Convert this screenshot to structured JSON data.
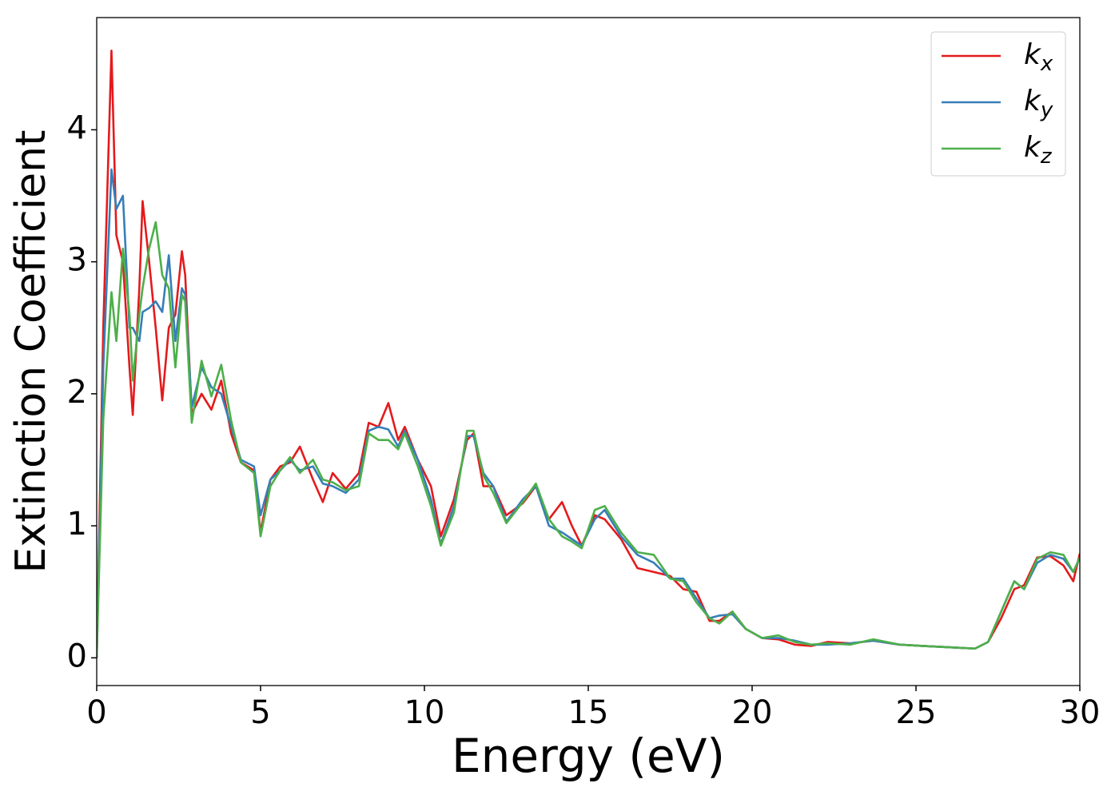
{
  "chart_data": {
    "type": "line",
    "xlabel": "Energy (eV)",
    "ylabel": "Extinction Coefficient",
    "xlim": [
      0,
      30
    ],
    "ylim": [
      -0.21,
      4.85
    ],
    "xticks": [
      0,
      5,
      10,
      15,
      20,
      25,
      30
    ],
    "yticks": [
      0,
      1,
      2,
      3,
      4
    ],
    "grid": false,
    "legend": "upper right",
    "x": [
      0,
      0.2,
      0.45,
      0.6,
      0.8,
      1.0,
      1.1,
      1.3,
      1.4,
      1.6,
      1.8,
      2.0,
      2.2,
      2.4,
      2.6,
      2.7,
      2.9,
      3.2,
      3.5,
      3.8,
      4.1,
      4.4,
      4.8,
      5.0,
      5.3,
      5.6,
      5.9,
      6.2,
      6.6,
      6.9,
      7.2,
      7.6,
      8.0,
      8.3,
      8.6,
      8.9,
      9.2,
      9.4,
      9.8,
      10.2,
      10.5,
      10.9,
      11.3,
      11.5,
      11.8,
      12.1,
      12.5,
      13.0,
      13.4,
      13.8,
      14.2,
      14.5,
      14.8,
      15.2,
      15.5,
      16.0,
      16.5,
      17.0,
      17.5,
      17.9,
      18.3,
      18.7,
      19.0,
      19.4,
      19.8,
      20.3,
      20.8,
      21.3,
      21.8,
      22.3,
      23.0,
      23.7,
      24.5,
      25.2,
      26.0,
      26.8,
      27.2,
      27.6,
      28.0,
      28.3,
      28.7,
      29.1,
      29.5,
      29.8,
      30.0
    ],
    "series": [
      {
        "name": "kx",
        "color": "#e41a1c",
        "values": [
          0,
          2.5,
          4.6,
          3.2,
          3.0,
          2.2,
          1.84,
          2.8,
          3.46,
          3.0,
          2.5,
          1.95,
          2.5,
          2.6,
          3.08,
          2.9,
          1.85,
          2.0,
          1.88,
          2.1,
          1.7,
          1.48,
          1.42,
          0.95,
          1.35,
          1.45,
          1.48,
          1.6,
          1.35,
          1.18,
          1.4,
          1.28,
          1.4,
          1.78,
          1.75,
          1.93,
          1.65,
          1.75,
          1.5,
          1.3,
          0.92,
          1.2,
          1.65,
          1.7,
          1.3,
          1.3,
          1.08,
          1.17,
          1.3,
          1.05,
          1.18,
          1.0,
          0.85,
          1.08,
          1.05,
          0.9,
          0.68,
          0.65,
          0.62,
          0.52,
          0.5,
          0.28,
          0.28,
          0.35,
          0.22,
          0.15,
          0.14,
          0.1,
          0.09,
          0.12,
          0.11,
          0.13,
          0.1,
          0.09,
          0.08,
          0.07,
          0.12,
          0.3,
          0.52,
          0.55,
          0.76,
          0.77,
          0.7,
          0.58,
          0.79
        ]
      },
      {
        "name": "ky",
        "color": "#377eb8",
        "values": [
          0,
          2.2,
          3.7,
          3.4,
          3.5,
          2.5,
          2.5,
          2.4,
          2.62,
          2.65,
          2.7,
          2.62,
          3.05,
          2.4,
          2.8,
          2.75,
          1.9,
          2.2,
          2.05,
          2.0,
          1.75,
          1.5,
          1.45,
          1.08,
          1.35,
          1.42,
          1.5,
          1.42,
          1.45,
          1.32,
          1.3,
          1.25,
          1.35,
          1.72,
          1.75,
          1.73,
          1.6,
          1.72,
          1.5,
          1.2,
          0.86,
          1.15,
          1.68,
          1.68,
          1.4,
          1.3,
          1.03,
          1.2,
          1.3,
          1.0,
          0.95,
          0.9,
          0.85,
          1.05,
          1.12,
          0.92,
          0.78,
          0.72,
          0.6,
          0.6,
          0.45,
          0.3,
          0.32,
          0.33,
          0.22,
          0.15,
          0.15,
          0.13,
          0.1,
          0.1,
          0.11,
          0.13,
          0.1,
          0.09,
          0.08,
          0.07,
          0.12,
          0.35,
          0.58,
          0.52,
          0.72,
          0.78,
          0.75,
          0.65,
          0.76
        ]
      },
      {
        "name": "kz",
        "color": "#4daf4a",
        "values": [
          0,
          1.8,
          2.77,
          2.4,
          3.1,
          2.6,
          2.1,
          2.6,
          2.8,
          3.1,
          3.3,
          2.9,
          2.8,
          2.2,
          2.75,
          2.7,
          1.78,
          2.25,
          1.98,
          2.22,
          1.8,
          1.48,
          1.4,
          0.92,
          1.3,
          1.42,
          1.52,
          1.4,
          1.5,
          1.35,
          1.33,
          1.27,
          1.3,
          1.7,
          1.65,
          1.65,
          1.58,
          1.7,
          1.45,
          1.15,
          0.85,
          1.1,
          1.72,
          1.72,
          1.38,
          1.25,
          1.02,
          1.18,
          1.32,
          1.05,
          0.92,
          0.88,
          0.83,
          1.12,
          1.15,
          0.95,
          0.8,
          0.78,
          0.6,
          0.58,
          0.42,
          0.3,
          0.26,
          0.35,
          0.22,
          0.15,
          0.17,
          0.12,
          0.1,
          0.11,
          0.1,
          0.14,
          0.1,
          0.09,
          0.08,
          0.07,
          0.12,
          0.35,
          0.58,
          0.52,
          0.75,
          0.8,
          0.78,
          0.65,
          0.76
        ]
      }
    ]
  }
}
